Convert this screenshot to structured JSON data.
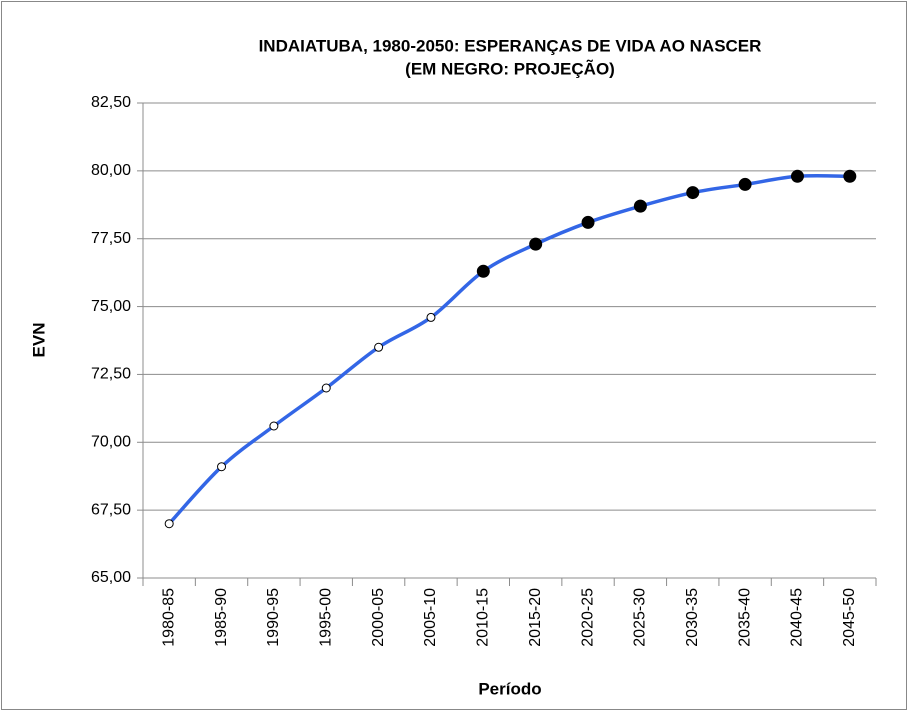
{
  "chart_data": {
    "type": "line",
    "title": "INDAIATUBA, 1980-2050: ESPERANÇAS DE VIDA AO NASCER",
    "subtitle": "(EM NEGRO: PROJEÇÃO)",
    "x_label": "Período",
    "y_label": "EVN",
    "categories": [
      "1980-85",
      "1985-90",
      "1990-95",
      "1995-00",
      "2000-05",
      "2005-10",
      "2010-15",
      "2015-20",
      "2020-25",
      "2025-30",
      "2030-35",
      "2035-40",
      "2040-45",
      "2045-50"
    ],
    "values": [
      67.0,
      69.1,
      70.6,
      72.0,
      73.5,
      74.6,
      76.3,
      77.3,
      78.1,
      78.7,
      79.2,
      79.5,
      79.8,
      79.8
    ],
    "color": "#3366e6",
    "marker_colors": [
      "#ffffff",
      "#ffffff",
      "#ffffff",
      "#ffffff",
      "#ffffff",
      "#ffffff",
      "#000000",
      "#000000",
      "#000000",
      "#000000",
      "#000000",
      "#000000",
      "#000000",
      "#000000"
    ],
    "smooth": true,
    "ylim": [
      65,
      82.5
    ],
    "yticks": [
      {
        "value": 65,
        "label": "65,00"
      },
      {
        "value": 67.5,
        "label": "67,50"
      },
      {
        "value": 70,
        "label": "70,00"
      },
      {
        "value": 72.5,
        "label": "72,50"
      },
      {
        "value": 75,
        "label": "75,00"
      },
      {
        "value": 77.5,
        "label": "77,50"
      },
      {
        "value": 80,
        "label": "80,00"
      },
      {
        "value": 82.5,
        "label": "82,50"
      }
    ],
    "grid": true
  }
}
